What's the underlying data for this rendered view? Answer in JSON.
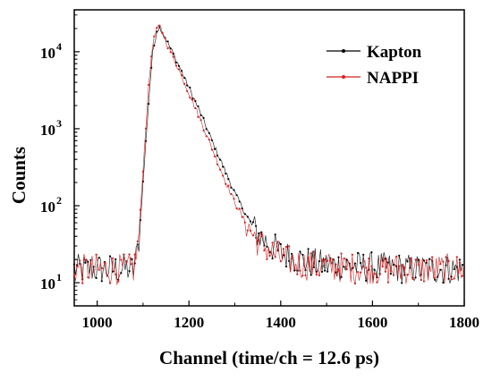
{
  "chart_data": {
    "type": "scatter",
    "xlabel": "Channel (time/ch = 12.6 ps)",
    "ylabel": "Counts",
    "xlim": [
      950,
      1800
    ],
    "ylim": [
      5,
      35000
    ],
    "yscale": "log",
    "x_ticks": [
      1000,
      1200,
      1400,
      1600,
      1800
    ],
    "x_tick_labels": [
      "1000",
      "1200",
      "1400",
      "1600",
      "1800"
    ],
    "y_ticks": [
      10,
      100,
      1000,
      10000
    ],
    "y_tick_labels": [
      {
        "base": "10",
        "exp": "1"
      },
      {
        "base": "10",
        "exp": "2"
      },
      {
        "base": "10",
        "exp": "3"
      },
      {
        "base": "10",
        "exp": "4"
      }
    ],
    "legend_position": "top-right",
    "grid": false,
    "background_level": 15,
    "series": [
      {
        "name": "Kapton",
        "color": "#000000",
        "marker": "dot-line",
        "x": [
          950,
          1080,
          1090,
          1100,
          1110,
          1120,
          1130,
          1137,
          1150,
          1175,
          1200,
          1225,
          1250,
          1275,
          1300,
          1325,
          1350,
          1400,
          1450,
          1500,
          1600,
          1700,
          1800
        ],
        "y": [
          15,
          15,
          30,
          200,
          1500,
          9000,
          19000,
          21000,
          14500,
          7200,
          3400,
          1600,
          700,
          320,
          145,
          75,
          42,
          24,
          19,
          17,
          16,
          15,
          15
        ]
      },
      {
        "name": "NAPPI",
        "color": "#d42020",
        "marker": "dot-line",
        "x": [
          950,
          1080,
          1090,
          1100,
          1110,
          1120,
          1130,
          1137,
          1150,
          1175,
          1200,
          1225,
          1250,
          1275,
          1300,
          1325,
          1350,
          1400,
          1450,
          1500,
          1600,
          1700,
          1800
        ],
        "y": [
          15,
          15,
          35,
          300,
          2500,
          12000,
          20000,
          21000,
          13500,
          6400,
          2900,
          1300,
          560,
          240,
          110,
          58,
          34,
          21,
          17,
          16,
          15,
          15,
          15
        ]
      }
    ]
  }
}
